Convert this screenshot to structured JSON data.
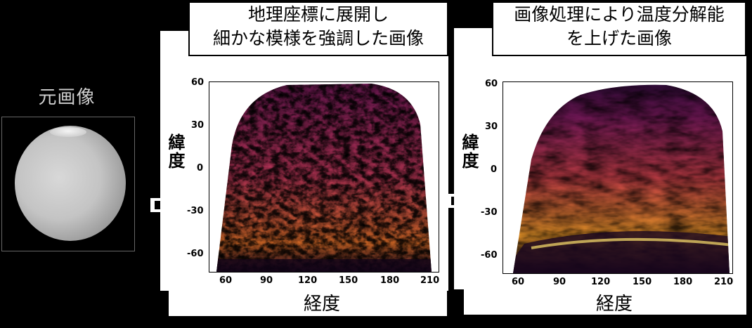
{
  "original": {
    "label": "元画像"
  },
  "panel1": {
    "title_line1": "地理座標に展開し",
    "title_line2": "細かな模様を強調した画像",
    "ylabel": "緯度",
    "xlabel": "経度",
    "x_ticks": [
      "60",
      "90",
      "120",
      "150",
      "180",
      "210"
    ],
    "y_ticks": [
      "60",
      "30",
      "0",
      "-30",
      "-60"
    ]
  },
  "panel2": {
    "title_line1": "画像処理により温度分解能",
    "title_line2": "を上げた画像",
    "ylabel": "緯度",
    "xlabel": "経度",
    "x_ticks": [
      "60",
      "90",
      "120",
      "150",
      "180",
      "210"
    ],
    "y_ticks": [
      "60",
      "30",
      "0",
      "-30",
      "-60"
    ]
  },
  "colors": {
    "dark": "#1a0822",
    "purple": "#5b1466",
    "red": "#b8325a",
    "orange": "#f08a1c",
    "yellow": "#fde26e"
  }
}
